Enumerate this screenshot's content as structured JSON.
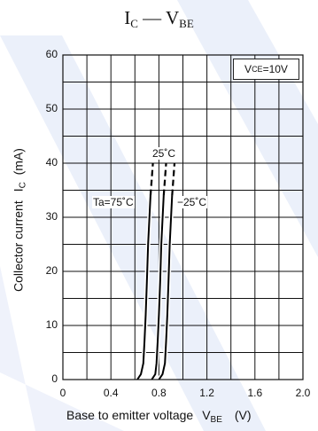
{
  "chart_data": {
    "type": "line",
    "title": "I_C — V_BE",
    "title_parts": {
      "main1": "I",
      "sub1": "C",
      "dash": " — ",
      "main2": "V",
      "sub2": "BE"
    },
    "xlabel": "Base to emitter voltage  V_BE   (V)",
    "xlabel_parts": {
      "text": "Base to emitter voltage",
      "sym": "V",
      "sub": "BE",
      "unit": "(V)"
    },
    "ylabel": "Collector current  I_C  (mA)",
    "ylabel_parts": {
      "text": "Collector current",
      "sym": "I",
      "sub": "C",
      "unit": "(mA)"
    },
    "xlim": [
      0,
      2.0
    ],
    "ylim": [
      0,
      60
    ],
    "x_ticks": [
      "0",
      "0.4",
      "0.8",
      "1.2",
      "1.6",
      "2.0"
    ],
    "y_ticks": [
      "0",
      "10",
      "20",
      "30",
      "40",
      "50",
      "60"
    ],
    "grid": true,
    "annotation": {
      "sym": "V",
      "sub": "CE",
      "rest": "=10V"
    },
    "series": [
      {
        "name": "Ta=75˚C",
        "label": "Ta=75˚C",
        "x": [
          0.62,
          0.65,
          0.67,
          0.68,
          0.69,
          0.7,
          0.71,
          0.73
        ],
        "y": [
          0,
          1,
          3,
          7,
          12,
          18,
          25,
          34
        ],
        "dashed_to": {
          "x": 0.75,
          "y": 40
        }
      },
      {
        "name": "25˚C",
        "label": "25˚C",
        "x": [
          0.74,
          0.77,
          0.78,
          0.79,
          0.8,
          0.81,
          0.82,
          0.84
        ],
        "y": [
          0,
          1,
          3,
          7,
          12,
          18,
          25,
          34
        ],
        "dashed_to": {
          "x": 0.86,
          "y": 40
        }
      },
      {
        "name": "−25˚C",
        "label": "−25˚C",
        "x": [
          0.8,
          0.83,
          0.85,
          0.86,
          0.87,
          0.88,
          0.89,
          0.91
        ],
        "y": [
          0,
          1,
          3,
          7,
          12,
          18,
          25,
          34
        ],
        "dashed_to": {
          "x": 0.93,
          "y": 40
        }
      }
    ]
  },
  "colors": {
    "watermark": "#dbe3f6",
    "axis": "#111111",
    "grid": "#111111",
    "curve": "#000000"
  }
}
